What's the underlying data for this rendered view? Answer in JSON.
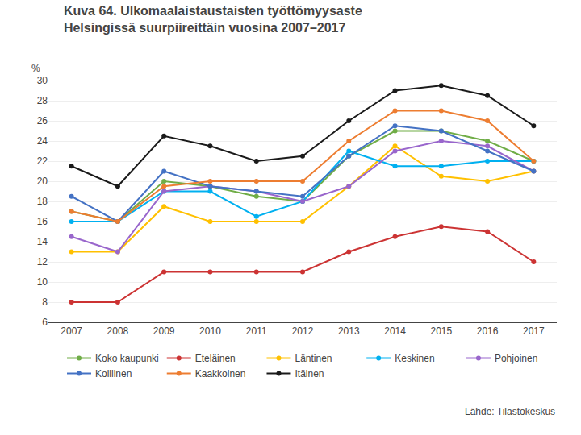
{
  "chart_data": {
    "type": "line",
    "title": "Kuva 64. Ulkomaalaistaustaisten työttömyysaste",
    "subtitle": "Helsingissä suurpiireittäin vuosina 2007–2017",
    "ylabel": "%",
    "source": "Lähde: Tilastokeskus",
    "x": [
      2007,
      2008,
      2009,
      2010,
      2011,
      2012,
      2013,
      2014,
      2015,
      2016,
      2017
    ],
    "series": [
      {
        "name": "Koko kaupunki",
        "color": "#70AD47",
        "values": [
          17.0,
          16.0,
          20.0,
          19.5,
          18.5,
          18.0,
          22.5,
          25.0,
          25.0,
          24.0,
          22.0
        ]
      },
      {
        "name": "Eteläinen",
        "color": "#CC3333",
        "values": [
          8.0,
          8.0,
          11.0,
          11.0,
          11.0,
          11.0,
          13.0,
          14.5,
          15.5,
          15.0,
          12.0
        ]
      },
      {
        "name": "Läntinen",
        "color": "#FFC000",
        "values": [
          13.0,
          13.0,
          17.5,
          16.0,
          16.0,
          16.0,
          19.5,
          23.5,
          20.5,
          20.0,
          21.0
        ]
      },
      {
        "name": "Keskinen",
        "color": "#00B0F0",
        "values": [
          16.0,
          16.0,
          19.0,
          19.0,
          16.5,
          18.0,
          23.0,
          21.5,
          21.5,
          22.0,
          22.0
        ]
      },
      {
        "name": "Pohjoinen",
        "color": "#9966CC",
        "values": [
          14.5,
          13.0,
          19.0,
          19.5,
          19.0,
          18.0,
          19.5,
          23.0,
          24.0,
          23.5,
          21.0
        ]
      },
      {
        "name": "Koillinen",
        "color": "#4472C4",
        "values": [
          18.5,
          16.0,
          21.0,
          19.5,
          19.0,
          18.5,
          22.5,
          25.5,
          25.0,
          23.0,
          21.0
        ]
      },
      {
        "name": "Kaakkoinen",
        "color": "#ED7D31",
        "values": [
          17.0,
          16.0,
          19.5,
          20.0,
          20.0,
          20.0,
          24.0,
          27.0,
          27.0,
          26.0,
          22.0
        ]
      },
      {
        "name": "Itäinen",
        "color": "#1A1A1A",
        "values": [
          21.5,
          19.5,
          24.5,
          23.5,
          22.0,
          22.5,
          26.0,
          29.0,
          29.5,
          28.5,
          25.5
        ]
      }
    ],
    "xlim": [
      2006.5,
      2017.5
    ],
    "xticks": [
      2007,
      2008,
      2009,
      2010,
      2011,
      2012,
      2013,
      2014,
      2015,
      2016,
      2017
    ],
    "ylim": [
      6,
      30
    ],
    "yticks": [
      6,
      8,
      10,
      12,
      14,
      16,
      18,
      20,
      22,
      24,
      26,
      28,
      30
    ],
    "grid": true,
    "legend": "bottom",
    "marker": "circle"
  }
}
